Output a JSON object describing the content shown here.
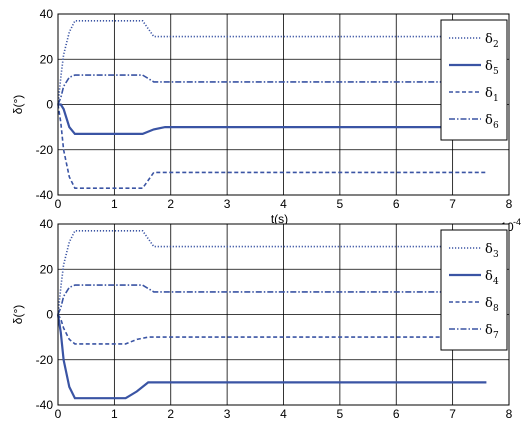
{
  "chart_data": [
    {
      "type": "line",
      "xlabel": "t(s)",
      "ylabel": "δ(°)",
      "x_multiplier": "x 10",
      "x_multiplier_exp": "-4",
      "xlim": [
        0,
        8
      ],
      "ylim": [
        -40,
        40
      ],
      "xticks": [
        "0",
        "1",
        "2",
        "3",
        "4",
        "5",
        "6",
        "7",
        "8"
      ],
      "yticks": [
        "40",
        "20",
        "0",
        "-20",
        "-40"
      ],
      "grid": true,
      "legend_position": "top-right",
      "series": [
        {
          "name": "δ",
          "sub": "2",
          "style": "dotted",
          "x": [
            0,
            0.05,
            0.1,
            0.2,
            0.3,
            0.4,
            1.5,
            1.7,
            2.0,
            7.6
          ],
          "y": [
            0,
            12,
            22,
            32,
            37,
            37,
            37,
            30,
            30,
            30
          ]
        },
        {
          "name": "δ",
          "sub": "5",
          "style": "solid",
          "x": [
            0,
            0.05,
            0.1,
            0.2,
            0.3,
            0.4,
            1.5,
            1.7,
            1.9,
            2.0,
            7.6
          ],
          "y": [
            0,
            0,
            -2,
            -10,
            -13,
            -13,
            -13,
            -11,
            -10,
            -10,
            -10
          ]
        },
        {
          "name": "δ",
          "sub": "1",
          "style": "dashed",
          "x": [
            0,
            0.05,
            0.1,
            0.2,
            0.3,
            0.4,
            1.5,
            1.7,
            2.0,
            7.6
          ],
          "y": [
            0,
            -8,
            -20,
            -32,
            -37,
            -37,
            -37,
            -30,
            -30,
            -30
          ]
        },
        {
          "name": "δ",
          "sub": "6",
          "style": "dashdot",
          "x": [
            0,
            0.05,
            0.1,
            0.2,
            0.3,
            0.4,
            1.5,
            1.7,
            2.0,
            7.6
          ],
          "y": [
            0,
            3,
            8,
            12,
            13,
            13,
            13,
            10,
            10,
            10
          ]
        }
      ]
    },
    {
      "type": "line",
      "xlabel": "t(s)",
      "ylabel": "δ(°)",
      "x_multiplier": "x 10",
      "x_multiplier_exp": "-4",
      "xlim": [
        0,
        8
      ],
      "ylim": [
        -40,
        40
      ],
      "xticks": [
        "0",
        "1",
        "2",
        "3",
        "4",
        "5",
        "6",
        "7",
        "8"
      ],
      "yticks": [
        "40",
        "20",
        "0",
        "-20",
        "-40"
      ],
      "grid": true,
      "legend_position": "top-right",
      "series": [
        {
          "name": "δ",
          "sub": "3",
          "style": "dotted",
          "x": [
            0,
            0.05,
            0.1,
            0.2,
            0.3,
            0.4,
            1.5,
            1.7,
            2.0,
            7.6
          ],
          "y": [
            0,
            12,
            22,
            32,
            37,
            37,
            37,
            30,
            30,
            30
          ]
        },
        {
          "name": "δ",
          "sub": "4",
          "style": "solid",
          "x": [
            0,
            0.05,
            0.1,
            0.2,
            0.3,
            0.4,
            1.2,
            1.4,
            1.6,
            1.8,
            7.6
          ],
          "y": [
            0,
            -8,
            -20,
            -32,
            -37,
            -37,
            -37,
            -34,
            -30,
            -30,
            -30
          ]
        },
        {
          "name": "δ",
          "sub": "8",
          "style": "dashed",
          "x": [
            0,
            0.05,
            0.1,
            0.2,
            0.3,
            0.4,
            1.2,
            1.4,
            1.6,
            1.8,
            7.6
          ],
          "y": [
            0,
            -2,
            -6,
            -11,
            -13,
            -13,
            -13,
            -11,
            -10,
            -10,
            -10
          ]
        },
        {
          "name": "δ",
          "sub": "7",
          "style": "dashdot",
          "x": [
            0,
            0.05,
            0.1,
            0.2,
            0.3,
            0.4,
            1.5,
            1.7,
            2.0,
            7.6
          ],
          "y": [
            0,
            3,
            8,
            12,
            13,
            13,
            13,
            10,
            10,
            10
          ]
        }
      ]
    }
  ]
}
